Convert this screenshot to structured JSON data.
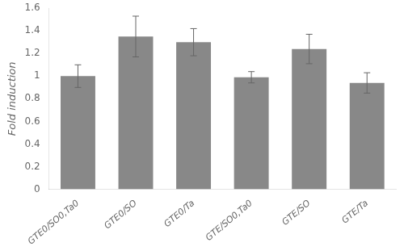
{
  "chart_data": {
    "type": "bar",
    "categories": [
      "GTE0/SO0,Ta0",
      "GTE0/SO",
      "GTE0/Ta",
      "GTE/SO0,Ta0",
      "GTE/SO",
      "GTE/Ta"
    ],
    "values": [
      1.0,
      1.35,
      1.3,
      0.99,
      1.24,
      0.94
    ],
    "errors": [
      0.1,
      0.18,
      0.12,
      0.05,
      0.13,
      0.09
    ],
    "color": "#888888",
    "ylabel": "Fold induction",
    "ylim": [
      0,
      1.6
    ],
    "yticks": [
      0,
      0.2,
      0.4,
      0.6,
      0.8,
      1.0,
      1.2,
      1.4,
      1.6
    ],
    "grid": false
  }
}
